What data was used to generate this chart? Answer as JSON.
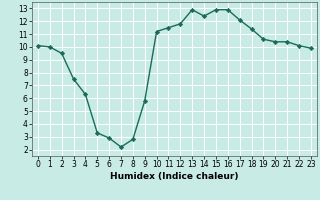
{
  "x": [
    0,
    1,
    2,
    3,
    4,
    5,
    6,
    7,
    8,
    9,
    10,
    11,
    12,
    13,
    14,
    15,
    16,
    17,
    18,
    19,
    20,
    21,
    22,
    23
  ],
  "y": [
    10.1,
    10.0,
    9.5,
    7.5,
    6.3,
    3.3,
    2.9,
    2.2,
    2.8,
    5.8,
    11.2,
    11.5,
    11.8,
    12.9,
    12.4,
    12.9,
    12.9,
    12.1,
    11.4,
    10.6,
    10.4,
    10.4,
    10.1,
    9.9
  ],
  "line_color": "#1a6b5a",
  "marker": "D",
  "markersize": 2.2,
  "linewidth": 1.0,
  "xlabel": "Humidex (Indice chaleur)",
  "xlim": [
    -0.5,
    23.5
  ],
  "ylim": [
    1.5,
    13.5
  ],
  "yticks": [
    2,
    3,
    4,
    5,
    6,
    7,
    8,
    9,
    10,
    11,
    12,
    13
  ],
  "xticks": [
    0,
    1,
    2,
    3,
    4,
    5,
    6,
    7,
    8,
    9,
    10,
    11,
    12,
    13,
    14,
    15,
    16,
    17,
    18,
    19,
    20,
    21,
    22,
    23
  ],
  "background_color": "#c8ebe6",
  "grid_color": "#ffffff",
  "xlabel_fontsize": 6.5,
  "tick_fontsize": 5.5
}
